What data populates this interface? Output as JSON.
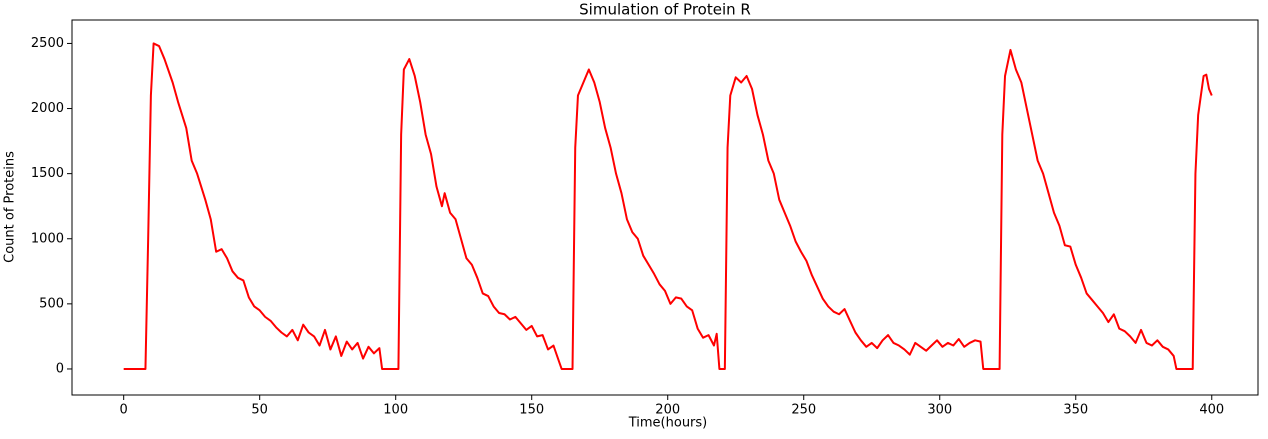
{
  "chart_data": {
    "type": "line",
    "title": "Simulation of Protein R",
    "x_label": "Time(hours)",
    "y_label": "Count of Proteins",
    "x": [
      0,
      8,
      9,
      10,
      11,
      13,
      15,
      18,
      20,
      23,
      25,
      27,
      30,
      32,
      34,
      36,
      38,
      40,
      42,
      44,
      46,
      48,
      50,
      52,
      54,
      56,
      58,
      60,
      62,
      64,
      66,
      68,
      70,
      72,
      74,
      76,
      78,
      80,
      82,
      84,
      86,
      88,
      90,
      92,
      94,
      95,
      101,
      102,
      103,
      105,
      107,
      109,
      111,
      113,
      115,
      117,
      118,
      120,
      122,
      124,
      126,
      128,
      130,
      132,
      134,
      136,
      138,
      140,
      142,
      144,
      146,
      148,
      150,
      152,
      154,
      156,
      158,
      160,
      161,
      165,
      166,
      167,
      169,
      171,
      173,
      175,
      177,
      179,
      181,
      183,
      185,
      187,
      189,
      191,
      193,
      195,
      197,
      199,
      201,
      203,
      205,
      207,
      209,
      211,
      213,
      215,
      217,
      218,
      219,
      221,
      222,
      223,
      225,
      227,
      229,
      231,
      233,
      235,
      237,
      239,
      241,
      243,
      245,
      247,
      249,
      251,
      253,
      255,
      257,
      259,
      261,
      263,
      265,
      267,
      269,
      271,
      273,
      275,
      277,
      279,
      281,
      283,
      285,
      287,
      289,
      291,
      293,
      295,
      297,
      299,
      301,
      303,
      305,
      307,
      309,
      311,
      313,
      315,
      316,
      322,
      323,
      324,
      326,
      328,
      330,
      332,
      334,
      336,
      338,
      340,
      342,
      344,
      346,
      348,
      350,
      352,
      354,
      356,
      358,
      360,
      362,
      364,
      366,
      368,
      370,
      372,
      374,
      376,
      378,
      380,
      382,
      384,
      386,
      387,
      393,
      394,
      395,
      397,
      398,
      399,
      400
    ],
    "series": [
      {
        "name": "Protein R",
        "color": "#ff0000",
        "values": [
          0,
          0,
          1000,
          2100,
          2500,
          2480,
          2380,
          2200,
          2050,
          1850,
          1600,
          1500,
          1300,
          1150,
          900,
          920,
          850,
          750,
          700,
          680,
          550,
          480,
          450,
          400,
          370,
          320,
          280,
          250,
          300,
          220,
          340,
          280,
          250,
          180,
          300,
          150,
          250,
          100,
          210,
          150,
          200,
          80,
          170,
          120,
          160,
          0,
          0,
          1800,
          2300,
          2380,
          2250,
          2050,
          1800,
          1650,
          1400,
          1250,
          1350,
          1200,
          1150,
          1000,
          850,
          800,
          700,
          580,
          560,
          480,
          430,
          420,
          380,
          400,
          350,
          300,
          330,
          250,
          260,
          150,
          180,
          60,
          0,
          0,
          1700,
          2100,
          2200,
          2300,
          2200,
          2050,
          1850,
          1700,
          1500,
          1350,
          1150,
          1050,
          1000,
          870,
          800,
          730,
          650,
          600,
          500,
          550,
          540,
          480,
          450,
          310,
          240,
          260,
          180,
          270,
          0,
          0,
          1700,
          2100,
          2240,
          2200,
          2250,
          2150,
          1950,
          1800,
          1600,
          1500,
          1300,
          1200,
          1100,
          980,
          900,
          830,
          720,
          630,
          540,
          480,
          440,
          420,
          460,
          370,
          280,
          220,
          170,
          200,
          160,
          220,
          260,
          200,
          180,
          150,
          110,
          200,
          170,
          140,
          180,
          220,
          170,
          200,
          180,
          230,
          170,
          200,
          220,
          210,
          0,
          0,
          1800,
          2250,
          2450,
          2300,
          2200,
          2000,
          1800,
          1600,
          1500,
          1350,
          1200,
          1100,
          950,
          940,
          800,
          700,
          580,
          530,
          480,
          430,
          360,
          420,
          310,
          290,
          250,
          200,
          300,
          200,
          180,
          220,
          170,
          150,
          100,
          0,
          0,
          1500,
          1950,
          2250,
          2260,
          2150,
          2100
        ]
      }
    ],
    "xlim": [
      -19,
      417
    ],
    "ylim": [
      -200,
      2680
    ],
    "xticks": [
      0,
      50,
      100,
      150,
      200,
      250,
      300,
      350,
      400
    ],
    "yticks": [
      0,
      500,
      1000,
      1500,
      2000,
      2500
    ]
  }
}
